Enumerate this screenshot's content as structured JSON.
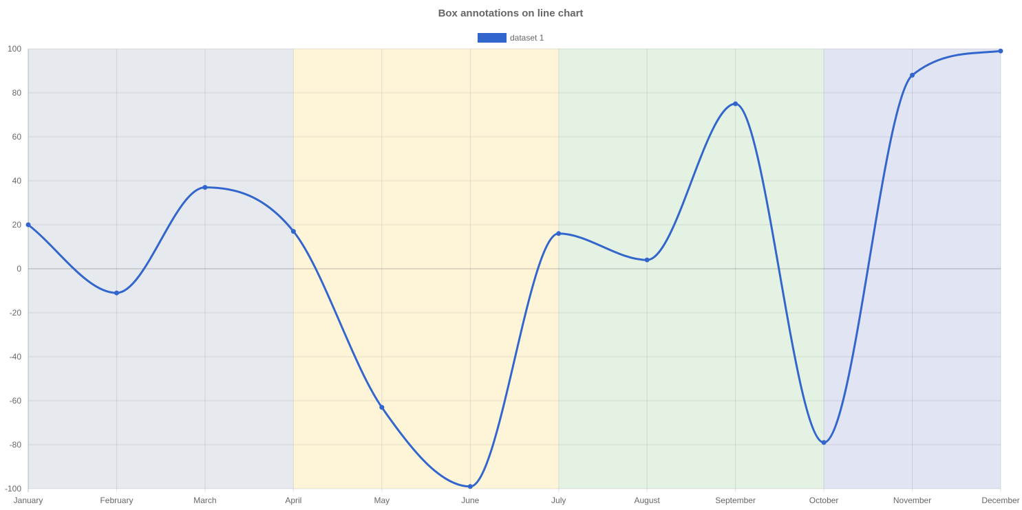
{
  "chart_data": {
    "type": "line",
    "title": "Box annotations on line chart",
    "categories": [
      "January",
      "February",
      "March",
      "April",
      "May",
      "June",
      "July",
      "August",
      "September",
      "October",
      "November",
      "December"
    ],
    "series": [
      {
        "name": "dataset 1",
        "color": "#3366cc",
        "values": [
          20,
          -11,
          37,
          17,
          -63,
          -99,
          16,
          4,
          75,
          -79,
          88,
          99
        ]
      }
    ],
    "ylim": [
      -100,
      100
    ],
    "yticks": [
      100,
      80,
      60,
      40,
      20,
      0,
      -20,
      -40,
      -60,
      -80,
      -100
    ],
    "grid": true,
    "legend_position": "top-center",
    "annotations": [
      {
        "type": "box",
        "from": "January",
        "to": "April",
        "color": "#e6e9ee"
      },
      {
        "type": "box",
        "from": "April",
        "to": "July",
        "color": "#fef5d9"
      },
      {
        "type": "box",
        "from": "July",
        "to": "October",
        "color": "#e4f2e4"
      },
      {
        "type": "box",
        "from": "October",
        "to": "December",
        "color": "#e1e4f3"
      }
    ]
  }
}
